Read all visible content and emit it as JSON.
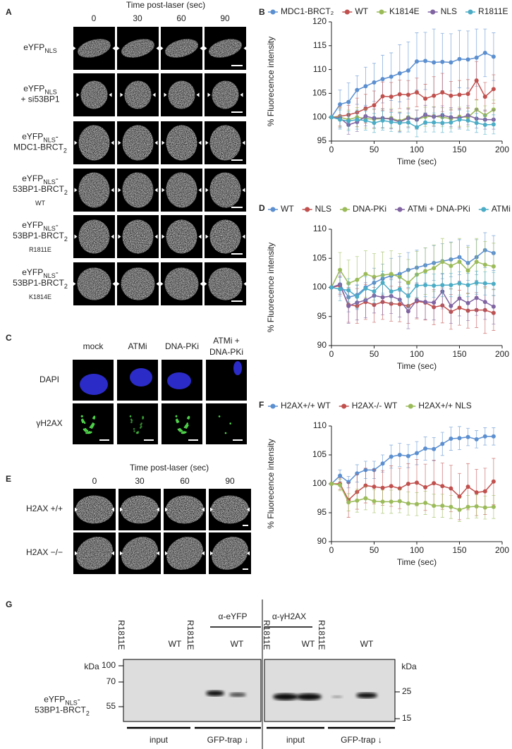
{
  "panel_letters": [
    "A",
    "B",
    "C",
    "D",
    "E",
    "F",
    "G"
  ],
  "panel_a": {
    "title": "Time post-laser (sec)",
    "times": [
      "0",
      "30",
      "60",
      "90"
    ],
    "rows": [
      [
        [
          {
            "t": "eYFP"
          },
          {
            "t": "NLS",
            "sub": true
          }
        ]
      ],
      [
        [
          {
            "t": "eYFP"
          },
          {
            "t": "NLS",
            "sub": true
          }
        ],
        [
          {
            "t": "+ si53BP1"
          }
        ]
      ],
      [
        [
          {
            "t": "eYFP"
          },
          {
            "t": "NLS",
            "sub": true
          },
          {
            "t": "-"
          }
        ],
        [
          {
            "t": "MDC1-BRCT"
          },
          {
            "t": "2",
            "sub": true
          }
        ]
      ],
      [
        [
          {
            "t": "eYFP"
          },
          {
            "t": "NLS",
            "sub": true
          },
          {
            "t": "-"
          }
        ],
        [
          {
            "t": "53BP1-BRCT"
          },
          {
            "t": "2",
            "sub": true
          }
        ],
        [
          {
            "t": "WT",
            "sub": true
          }
        ]
      ],
      [
        [
          {
            "t": "eYFP"
          },
          {
            "t": "NLS",
            "sub": true
          },
          {
            "t": "-"
          }
        ],
        [
          {
            "t": "53BP1-BRCT"
          },
          {
            "t": "2",
            "sub": true
          }
        ],
        [
          {
            "t": "R1811E",
            "sub": true
          }
        ]
      ],
      [
        [
          {
            "t": "eYFP"
          },
          {
            "t": "NLS",
            "sub": true
          },
          {
            "t": "-"
          }
        ],
        [
          {
            "t": "53BP1-BRCT"
          },
          {
            "t": "2",
            "sub": true
          }
        ],
        [
          {
            "t": "K1814E",
            "sub": true
          }
        ]
      ]
    ]
  },
  "chart_data": [
    {
      "type": "line",
      "xlabel": "Time (sec)",
      "ylabel": "% Fluorecence intensity",
      "x": [
        0,
        10,
        20,
        30,
        40,
        50,
        60,
        70,
        80,
        90,
        100,
        110,
        120,
        130,
        140,
        150,
        160,
        170,
        180,
        190
      ],
      "xlim": [
        0,
        200
      ],
      "xticks": [
        0,
        50,
        100,
        150,
        200
      ],
      "ylim": [
        95,
        120
      ],
      "yticks": [
        95,
        100,
        105,
        110,
        115,
        120
      ],
      "series": [
        {
          "name": "MDC1-BRCT₂",
          "color": "#5b8fd0",
          "values": [
            100,
            102.7,
            103.2,
            105.7,
            106.5,
            107.3,
            108.0,
            108.5,
            109.2,
            109.8,
            111.7,
            111.8,
            111.5,
            111.6,
            111.5,
            112.2,
            112.1,
            112.5,
            113.5,
            112.7
          ],
          "errors": [
            0,
            3,
            4,
            3,
            4,
            4,
            5,
            5,
            6,
            6,
            6,
            6,
            7,
            6,
            6,
            6,
            6,
            6,
            5,
            5
          ]
        },
        {
          "name": "WT",
          "color": "#c0504d",
          "values": [
            100,
            100.2,
            100.5,
            101.0,
            101.8,
            102.5,
            104.4,
            104.3,
            104.8,
            104.7,
            105.2,
            103.9,
            104.5,
            105.2,
            104.5,
            104.7,
            104.9,
            107.7,
            104.3,
            105.9
          ],
          "errors": [
            0,
            2,
            2,
            3,
            3,
            3,
            3,
            3,
            3,
            3,
            3,
            3,
            4,
            4,
            3,
            3,
            3,
            4,
            3,
            3
          ]
        },
        {
          "name": "K1814E",
          "color": "#9bbb59",
          "values": [
            100,
            100.0,
            99.5,
            100.0,
            99.7,
            99.6,
            99.7,
            99.8,
            99.2,
            100.0,
            99.5,
            100.1,
            100.2,
            100.0,
            99.7,
            100.1,
            100.0,
            101.6,
            100.4,
            101.6
          ],
          "errors": [
            0,
            2,
            2,
            2,
            2,
            2,
            2,
            2,
            2,
            2,
            2,
            2,
            2,
            2,
            2,
            2,
            2,
            2,
            2,
            2
          ]
        },
        {
          "name": "NLS",
          "color": "#8064a2",
          "values": [
            100,
            99.8,
            98.4,
            99.0,
            100.2,
            99.8,
            99.8,
            99.6,
            99.0,
            99.8,
            99.5,
            100.5,
            100.1,
            100.4,
            100.0,
            99.8,
            100.4,
            99.7,
            99.5,
            99.5
          ],
          "errors": [
            0,
            2,
            2,
            2,
            2,
            2,
            2,
            2,
            2,
            2,
            2,
            2,
            2,
            2,
            2,
            2,
            2,
            2,
            2,
            2
          ]
        },
        {
          "name": "R1811E",
          "color": "#4bacc6",
          "values": [
            100,
            99.5,
            99.2,
            99.5,
            99.3,
            98.8,
            99.3,
            99.0,
            98.8,
            98.9,
            97.9,
            98.9,
            98.9,
            98.8,
            98.9,
            99.5,
            99.3,
            98.8,
            98.4,
            98.5
          ],
          "errors": [
            0,
            2,
            2,
            2,
            2,
            2,
            2,
            2,
            2,
            2,
            2,
            2,
            2,
            2,
            2,
            2,
            2,
            2,
            2,
            2
          ]
        }
      ]
    },
    {
      "type": "line",
      "xlabel": "Time (sec)",
      "ylabel": "% Fluorecence intensity",
      "x": [
        0,
        10,
        20,
        30,
        40,
        50,
        60,
        70,
        80,
        90,
        100,
        110,
        120,
        130,
        140,
        150,
        160,
        170,
        180,
        190
      ],
      "xlim": [
        0,
        200
      ],
      "xticks": [
        0,
        50,
        100,
        150,
        200
      ],
      "ylim": [
        90,
        110
      ],
      "yticks": [
        90,
        95,
        100,
        105,
        110
      ],
      "series": [
        {
          "name": "WT",
          "color": "#5b8fd0",
          "values": [
            100,
            100.5,
            98.3,
            98.7,
            100,
            100.8,
            101.5,
            102,
            102.3,
            103,
            103.4,
            103.8,
            104.2,
            104.5,
            104.8,
            105.2,
            104.2,
            105.2,
            106.4,
            105.9
          ],
          "errors": [
            0,
            1.5,
            2.5,
            2.5,
            2.5,
            2.5,
            2.5,
            3,
            3,
            3,
            3,
            3,
            3,
            3,
            3,
            3,
            3,
            3,
            3,
            3
          ]
        },
        {
          "name": "NLS",
          "color": "#c0504d",
          "values": [
            100,
            100.3,
            97.0,
            96.8,
            97.5,
            97.0,
            97.5,
            97.2,
            97.1,
            96.8,
            97.6,
            97.4,
            96.6,
            96.9,
            95.8,
            96.5,
            96.0,
            96.1,
            96.1,
            95.6
          ],
          "errors": [
            0,
            1.5,
            3,
            3,
            3,
            3,
            3,
            3,
            3,
            3,
            3,
            3,
            3,
            3,
            3,
            3,
            3,
            3,
            4,
            3
          ]
        },
        {
          "name": "DNA-PKi",
          "color": "#9bbb59",
          "values": [
            100,
            103.0,
            100.7,
            101.3,
            102.3,
            101.8,
            102.1,
            102.3,
            101.8,
            100.8,
            102.2,
            102.8,
            103.3,
            104.4,
            103.7,
            104.4,
            102.9,
            104.4,
            103.9,
            103.6
          ],
          "errors": [
            0,
            3,
            4,
            4,
            4,
            4,
            4,
            4,
            4,
            4,
            4,
            4,
            4,
            4,
            4,
            4,
            4,
            4,
            4,
            4
          ]
        },
        {
          "name": "ATMi + DNA-PKi",
          "color": "#8064a2",
          "values": [
            100,
            100.5,
            96.8,
            97.4,
            97.8,
            98.6,
            98.3,
            98.5,
            97.9,
            95.9,
            97.8,
            97.5,
            97.4,
            99.3,
            96.8,
            98.1,
            97.3,
            98.2,
            97.5,
            96.7
          ],
          "errors": [
            0,
            2,
            3,
            3,
            3,
            3,
            3,
            3,
            3,
            3,
            3,
            3,
            3,
            3,
            3,
            3,
            3,
            3,
            3,
            3
          ]
        },
        {
          "name": "ATMi",
          "color": "#4bacc6",
          "values": [
            100,
            99.7,
            99.5,
            98.4,
            99.8,
            99.3,
            100.8,
            99.3,
            99.7,
            98.5,
            100.3,
            100.4,
            100.3,
            100.4,
            100.4,
            100.7,
            100.4,
            100.8,
            100.7,
            100.6
          ],
          "errors": [
            0,
            2,
            2,
            2,
            2,
            2,
            2,
            2,
            2,
            2,
            2,
            2,
            2,
            2,
            2,
            2,
            2,
            2,
            2,
            2
          ]
        }
      ]
    },
    {
      "type": "line",
      "xlabel": "Time (sec)",
      "ylabel": "% Fluorecence intensity",
      "x": [
        0,
        10,
        20,
        30,
        40,
        50,
        60,
        70,
        80,
        90,
        100,
        110,
        120,
        130,
        140,
        150,
        160,
        170,
        180,
        190
      ],
      "xlim": [
        0,
        200
      ],
      "xticks": [
        0,
        50,
        100,
        150,
        200
      ],
      "ylim": [
        90,
        110
      ],
      "yticks": [
        90,
        95,
        100,
        105,
        110
      ],
      "series": [
        {
          "name": "H2AX+/+ WT",
          "color": "#5b8fd0",
          "values": [
            100,
            101.4,
            100.3,
            101.8,
            102.4,
            102.4,
            103.5,
            104.7,
            105.0,
            104.8,
            105.3,
            106.1,
            106.0,
            106.9,
            107.8,
            107.9,
            108.1,
            107.7,
            108.2,
            108.2
          ],
          "errors": [
            0,
            1,
            1,
            1.5,
            1.5,
            1.5,
            1.5,
            2,
            2,
            2,
            2,
            2,
            2,
            2,
            2,
            2,
            1.5,
            1.5,
            1.5,
            1.5
          ]
        },
        {
          "name": "H2AX-/- WT",
          "color": "#c0504d",
          "values": [
            100,
            100,
            97.2,
            98.6,
            99.7,
            99.5,
            99.3,
            99.6,
            99.2,
            100.0,
            100.2,
            99.4,
            100.1,
            99.6,
            99.2,
            97.8,
            99.5,
            98.5,
            98.7,
            100.4
          ],
          "errors": [
            0,
            1,
            3,
            3,
            3,
            3,
            3,
            3.5,
            3.5,
            3.5,
            4,
            4,
            4,
            4,
            4,
            4,
            4,
            4,
            4,
            4
          ]
        },
        {
          "name": "H2AX+/+ NLS",
          "color": "#9bbb59",
          "values": [
            100,
            99.8,
            96.8,
            97.1,
            97.5,
            97.0,
            96.9,
            96.9,
            97.0,
            96.6,
            96.5,
            96.7,
            96.2,
            96.2,
            96.0,
            95.5,
            96.0,
            96.1,
            95.9,
            96.0
          ],
          "errors": [
            0,
            1,
            1.5,
            2,
            2,
            2,
            2,
            2,
            2,
            2,
            2,
            2,
            2,
            2,
            2,
            2,
            2,
            2,
            2,
            2
          ]
        }
      ]
    }
  ],
  "panel_c": {
    "columns": [
      [
        "mock"
      ],
      [
        "ATMi"
      ],
      [
        "DNA-PKi"
      ],
      [
        "ATMi +",
        "DNA-PKi"
      ]
    ],
    "rows": [
      "DAPI",
      "γH2AX"
    ]
  },
  "panel_e": {
    "title": "Time post-laser (sec)",
    "times": [
      "0",
      "30",
      "60",
      "90"
    ],
    "rows": [
      "H2AX +/+",
      "H2AX −/−"
    ]
  },
  "panel_g": {
    "antibodies": [
      "α-eYFP",
      "α-γH2AX"
    ],
    "lanes": [
      "R1811E",
      "WT",
      "R1811E",
      "WT",
      "R1811E",
      "WT",
      "R1811E",
      "WT"
    ],
    "kda": "kDa",
    "left_markers": [
      "100",
      "70",
      "55"
    ],
    "right_markers": [
      "25",
      "15"
    ],
    "sample": [
      [
        {
          "t": "eYFP"
        },
        {
          "t": "NLS",
          "sub": true
        },
        {
          "t": "-"
        }
      ],
      [
        {
          "t": "53BP1-BRCT"
        },
        {
          "t": "2",
          "sub": true
        }
      ]
    ],
    "groups": [
      "input",
      "GFP-trap ↓",
      "input",
      "GFP-trap ↓"
    ]
  }
}
